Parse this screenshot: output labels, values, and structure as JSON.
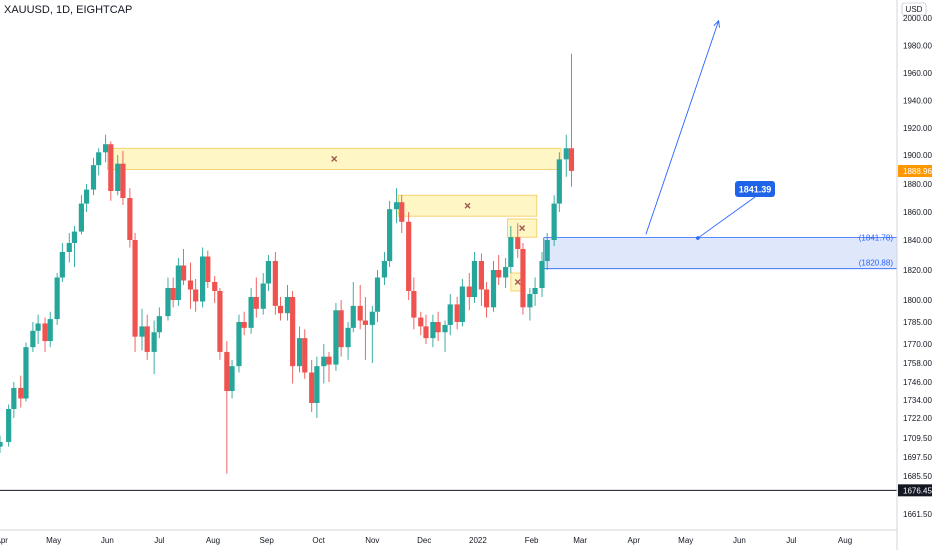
{
  "header": {
    "title": "XAUUSD, 1D, EIGHTCAP",
    "currency": "USD"
  },
  "colors": {
    "up": "#26a69a",
    "down": "#ef5350",
    "zone_fill": "#fff6c2",
    "zone_line": "#f2c94c",
    "demand_fill": "#dbe6fb",
    "demand_line": "#2962ff",
    "cross": "#9b5b4e",
    "current_price_bg": "#ff9800",
    "hline": "#131722"
  },
  "chart_data": {
    "type": "candlestick",
    "symbol": "XAUUSD",
    "timeframe": "1D",
    "broker": "EIGHTCAP",
    "ylim": [
      1650,
      2005
    ],
    "y_ticks": [
      "2000.00",
      "1980.00",
      "1960.00",
      "1940.00",
      "1920.00",
      "1900.00",
      "1880.00",
      "1860.00",
      "1840.00",
      "1820.00",
      "1800.00",
      "1785.00",
      "1770.00",
      "1758.00",
      "1746.00",
      "1734.00",
      "1722.00",
      "1709.50",
      "1697.50",
      "1685.50",
      "1661.50"
    ],
    "x_ticks": [
      "Apr",
      "May",
      "Jun",
      "Jul",
      "Aug",
      "Sep",
      "Oct",
      "Nov",
      "Dec",
      "2022",
      "Feb",
      "Mar",
      "Apr",
      "May",
      "Jun",
      "Jul",
      "Aug"
    ],
    "price_labels": {
      "current": "1888.96",
      "hline": "1676.45"
    },
    "resistance_zones": [
      {
        "from": "2021-06-01",
        "to": "2022-02-18",
        "low": 1890,
        "high": 1905
      },
      {
        "from": "2021-11-16",
        "to": "2022-02-04",
        "low": 1857,
        "high": 1872
      },
      {
        "from": "2022-01-18",
        "to": "2022-02-04",
        "low": 1842,
        "high": 1855
      },
      {
        "from": "2022-01-20",
        "to": "2022-01-28",
        "low": 1806,
        "high": 1818
      }
    ],
    "demand_zone": {
      "from": "2022-02-08",
      "to": "2022-08-31",
      "high": 1841.78,
      "low": 1820.88,
      "label_high": "(1841.78)",
      "label_low": "(1820.88)"
    },
    "target_callout": "1841.39",
    "projection": {
      "from_date": "2022-04-08",
      "from_price": 1844,
      "to_date": "2022-05-20",
      "to_price": 1998
    },
    "horizontal_line": 1676.45,
    "ohlc": [
      [
        "2021-03-31",
        1704,
        1711,
        1700,
        1707
      ],
      [
        "2021-04-05",
        1707,
        1731,
        1704,
        1728
      ],
      [
        "2021-04-08",
        1728,
        1746,
        1722,
        1742
      ],
      [
        "2021-04-12",
        1742,
        1750,
        1729,
        1735
      ],
      [
        "2021-04-15",
        1735,
        1771,
        1733,
        1768
      ],
      [
        "2021-04-19",
        1768,
        1785,
        1765,
        1779
      ],
      [
        "2021-04-22",
        1779,
        1790,
        1770,
        1784
      ],
      [
        "2021-04-26",
        1784,
        1788,
        1765,
        1772
      ],
      [
        "2021-04-29",
        1772,
        1792,
        1768,
        1787
      ],
      [
        "2021-05-03",
        1787,
        1818,
        1783,
        1815
      ],
      [
        "2021-05-06",
        1815,
        1838,
        1812,
        1832
      ],
      [
        "2021-05-10",
        1832,
        1845,
        1825,
        1838
      ],
      [
        "2021-05-13",
        1838,
        1850,
        1822,
        1846
      ],
      [
        "2021-05-17",
        1846,
        1872,
        1844,
        1866
      ],
      [
        "2021-05-20",
        1866,
        1880,
        1860,
        1876
      ],
      [
        "2021-05-24",
        1876,
        1898,
        1872,
        1893
      ],
      [
        "2021-05-27",
        1893,
        1905,
        1886,
        1902
      ],
      [
        "2021-05-31",
        1902,
        1915,
        1895,
        1908
      ],
      [
        "2021-06-03",
        1908,
        1910,
        1868,
        1875
      ],
      [
        "2021-06-07",
        1875,
        1900,
        1872,
        1894
      ],
      [
        "2021-06-10",
        1894,
        1903,
        1865,
        1870
      ],
      [
        "2021-06-14",
        1870,
        1877,
        1835,
        1840
      ],
      [
        "2021-06-17",
        1840,
        1845,
        1765,
        1775
      ],
      [
        "2021-06-21",
        1775,
        1794,
        1766,
        1782
      ],
      [
        "2021-06-24",
        1782,
        1790,
        1760,
        1765
      ],
      [
        "2021-06-28",
        1765,
        1786,
        1751,
        1778
      ],
      [
        "2021-07-01",
        1778,
        1795,
        1774,
        1789
      ],
      [
        "2021-07-06",
        1789,
        1815,
        1786,
        1808
      ],
      [
        "2021-07-09",
        1808,
        1815,
        1795,
        1800
      ],
      [
        "2021-07-12",
        1800,
        1828,
        1796,
        1823
      ],
      [
        "2021-07-15",
        1823,
        1834,
        1810,
        1813
      ],
      [
        "2021-07-19",
        1813,
        1825,
        1794,
        1807
      ],
      [
        "2021-07-22",
        1807,
        1814,
        1792,
        1799
      ],
      [
        "2021-07-26",
        1799,
        1835,
        1795,
        1829
      ],
      [
        "2021-07-29",
        1829,
        1833,
        1808,
        1812
      ],
      [
        "2021-08-02",
        1812,
        1816,
        1798,
        1806
      ],
      [
        "2021-08-05",
        1806,
        1808,
        1760,
        1765
      ],
      [
        "2021-08-09",
        1765,
        1772,
        1687,
        1740
      ],
      [
        "2021-08-12",
        1740,
        1760,
        1735,
        1756
      ],
      [
        "2021-08-16",
        1756,
        1790,
        1752,
        1785
      ],
      [
        "2021-08-19",
        1785,
        1792,
        1776,
        1781
      ],
      [
        "2021-08-23",
        1781,
        1808,
        1777,
        1802
      ],
      [
        "2021-08-26",
        1802,
        1815,
        1788,
        1794
      ],
      [
        "2021-08-30",
        1794,
        1818,
        1790,
        1811
      ],
      [
        "2021-09-02",
        1811,
        1830,
        1806,
        1826
      ],
      [
        "2021-09-06",
        1826,
        1832,
        1790,
        1796
      ],
      [
        "2021-09-09",
        1796,
        1802,
        1786,
        1791
      ],
      [
        "2021-09-13",
        1791,
        1810,
        1786,
        1802
      ],
      [
        "2021-09-16",
        1802,
        1806,
        1745,
        1756
      ],
      [
        "2021-09-20",
        1756,
        1782,
        1752,
        1774
      ],
      [
        "2021-09-23",
        1774,
        1780,
        1748,
        1752
      ],
      [
        "2021-09-27",
        1752,
        1760,
        1726,
        1732
      ],
      [
        "2021-09-30",
        1732,
        1762,
        1722,
        1756
      ],
      [
        "2021-10-04",
        1756,
        1770,
        1745,
        1762
      ],
      [
        "2021-10-07",
        1762,
        1765,
        1746,
        1757
      ],
      [
        "2021-10-11",
        1757,
        1798,
        1753,
        1793
      ],
      [
        "2021-10-14",
        1793,
        1800,
        1762,
        1768
      ],
      [
        "2021-10-18",
        1768,
        1785,
        1760,
        1781
      ],
      [
        "2021-10-21",
        1781,
        1812,
        1778,
        1796
      ],
      [
        "2021-10-25",
        1796,
        1810,
        1780,
        1786
      ],
      [
        "2021-10-28",
        1786,
        1802,
        1760,
        1783
      ],
      [
        "2021-11-01",
        1783,
        1796,
        1758,
        1792
      ],
      [
        "2021-11-04",
        1792,
        1820,
        1785,
        1815
      ],
      [
        "2021-11-08",
        1815,
        1832,
        1810,
        1826
      ],
      [
        "2021-11-11",
        1826,
        1868,
        1822,
        1862
      ],
      [
        "2021-11-15",
        1862,
        1877,
        1852,
        1867
      ],
      [
        "2021-11-18",
        1867,
        1872,
        1845,
        1853
      ],
      [
        "2021-11-22",
        1853,
        1860,
        1800,
        1806
      ],
      [
        "2021-11-25",
        1806,
        1815,
        1780,
        1788
      ],
      [
        "2021-11-29",
        1788,
        1792,
        1776,
        1782
      ],
      [
        "2021-12-02",
        1782,
        1790,
        1770,
        1774
      ],
      [
        "2021-12-06",
        1774,
        1790,
        1768,
        1785
      ],
      [
        "2021-12-09",
        1785,
        1792,
        1772,
        1778
      ],
      [
        "2021-12-13",
        1778,
        1786,
        1765,
        1783
      ],
      [
        "2021-12-16",
        1783,
        1804,
        1776,
        1797
      ],
      [
        "2021-12-20",
        1797,
        1802,
        1780,
        1785
      ],
      [
        "2021-12-23",
        1785,
        1814,
        1782,
        1809
      ],
      [
        "2021-12-27",
        1809,
        1818,
        1793,
        1802
      ],
      [
        "2021-12-30",
        1802,
        1832,
        1798,
        1826
      ],
      [
        "2022-01-03",
        1826,
        1831,
        1796,
        1807
      ],
      [
        "2022-01-06",
        1807,
        1812,
        1788,
        1795
      ],
      [
        "2022-01-10",
        1795,
        1826,
        1792,
        1820
      ],
      [
        "2022-01-13",
        1820,
        1830,
        1810,
        1815
      ],
      [
        "2022-01-17",
        1815,
        1828,
        1808,
        1822
      ],
      [
        "2022-01-20",
        1822,
        1850,
        1818,
        1842
      ],
      [
        "2022-01-24",
        1842,
        1852,
        1828,
        1834
      ],
      [
        "2022-01-27",
        1834,
        1838,
        1790,
        1795
      ],
      [
        "2022-01-31",
        1795,
        1808,
        1786,
        1804
      ],
      [
        "2022-02-03",
        1804,
        1815,
        1796,
        1808
      ],
      [
        "2022-02-07",
        1808,
        1832,
        1802,
        1826
      ],
      [
        "2022-02-10",
        1826,
        1845,
        1820,
        1840
      ],
      [
        "2022-02-14",
        1840,
        1872,
        1836,
        1866
      ],
      [
        "2022-02-17",
        1866,
        1902,
        1860,
        1897
      ],
      [
        "2022-02-21",
        1897,
        1915,
        1885,
        1905
      ],
      [
        "2022-02-24",
        1905,
        1974,
        1878,
        1889
      ]
    ]
  }
}
